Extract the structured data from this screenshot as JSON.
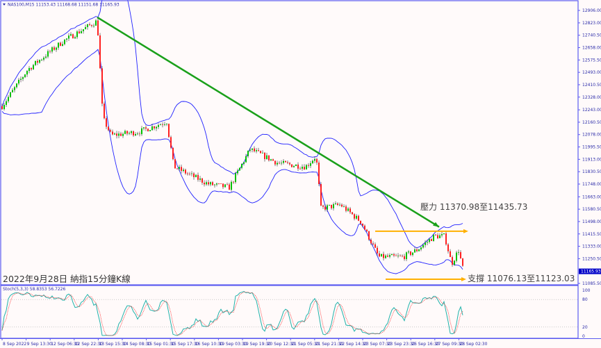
{
  "header": {
    "symbol_info": "NAS100,M15  11153.43 11168.68 11151.68 11165.93"
  },
  "title": "2022年9月28日 納指15分鐘K線",
  "stoch_header": "Stoch(5,3,3) 58.8353 56.7226",
  "colors": {
    "frame": "#5a5af0",
    "bull": "#00c000",
    "bear": "#ff2020",
    "wick": "#000000",
    "bands": "#2020ff",
    "trendline": "#1aa01a",
    "levels": "#ffb000",
    "stoch_main": "#20b2aa",
    "stoch_signal": "#ff3030",
    "price_tag_bg": "#0000c8"
  },
  "chart_data": {
    "type": "candlestick",
    "symbol": "NAS100",
    "timeframe": "M15",
    "indicators": [
      "Bollinger Bands",
      "Stochastic(5,3,3)"
    ],
    "y_ticks": [
      "12906.00",
      "12823.00",
      "12740.50",
      "12658.00",
      "12575.50",
      "12493.00",
      "12410.50",
      "12328.00",
      "12243.00",
      "12160.50",
      "12078.00",
      "11995.50",
      "11913.00",
      "11830.50",
      "11748.00",
      "11663.00",
      "11580.50",
      "11498.00",
      "11415.50",
      "11333.00",
      "11250.50",
      "11085.50"
    ],
    "ylim": [
      11085.5,
      12906
    ],
    "current_price": "11165.93",
    "x_ticks": [
      "8 Sep 2022",
      "9 Sep 13:30",
      "12 Sep 06:30",
      "12 Sep 22:30",
      "13 Sep 15:30",
      "14 Sep 08:30",
      "15 Sep 01:30",
      "15 Sep 17:30",
      "16 Sep 10:30",
      "19 Sep 03:30",
      "19 Sep 19:30",
      "20 Sep 12:30",
      "21 Sep 05:30",
      "21 Sep 21:30",
      "22 Sep 14:30",
      "23 Sep 07:30",
      "23 Sep 23:30",
      "26 Sep 16:30",
      "27 Sep 09:30",
      "28 Sep 02:30"
    ],
    "price_path": [
      {
        "t": "8 Sep 2022",
        "p": 12281
      },
      {
        "t": "9 Sep 09:00",
        "p": 12512
      },
      {
        "t": "12 Sep 00:00",
        "p": 12698
      },
      {
        "t": "13 Sep 14:00",
        "p": 12836
      },
      {
        "t": "13 Sep 16:00",
        "p": 12188
      },
      {
        "t": "13 Sep 22:00",
        "p": 12073
      },
      {
        "t": "14 Sep 18:00",
        "p": 12096
      },
      {
        "t": "15 Sep 09:00",
        "p": 12165
      },
      {
        "t": "15 Sep 13:00",
        "p": 11864
      },
      {
        "t": "16 Sep 08:00",
        "p": 11748
      },
      {
        "t": "16 Sep 16:00",
        "p": 11725
      },
      {
        "t": "19 Sep 06:00",
        "p": 11980
      },
      {
        "t": "20 Sep 00:00",
        "p": 11888
      },
      {
        "t": "20 Sep 20:00",
        "p": 11864
      },
      {
        "t": "21 Sep 16:00",
        "p": 11934
      },
      {
        "t": "21 Sep 21:00",
        "p": 11586
      },
      {
        "t": "22 Sep 08:00",
        "p": 11610
      },
      {
        "t": "22 Sep 22:00",
        "p": 11494
      },
      {
        "t": "23 Sep 12:00",
        "p": 11262
      },
      {
        "t": "26 Sep 04:00",
        "p": 11262
      },
      {
        "t": "26 Sep 14:00",
        "p": 11308
      },
      {
        "t": "27 Sep 03:00",
        "p": 11401
      },
      {
        "t": "27 Sep 10:00",
        "p": 11401
      },
      {
        "t": "27 Sep 14:00",
        "p": 11216
      },
      {
        "t": "27 Sep 20:00",
        "p": 11308
      },
      {
        "t": "28 Sep 02:30",
        "p": 11147
      }
    ],
    "stoch_levels": [
      "100",
      "80",
      "20",
      "0"
    ],
    "annotations": {
      "resistance": "壓力 11370.98至11435.73",
      "support": "支撐 11076.13至11123.03"
    },
    "lines": {
      "trendline": {
        "from": {
          "t": "13 Sep 14:00",
          "p": 12860
        },
        "to": {
          "t": "27 Sep 10:00",
          "p": 11462
        }
      },
      "resistance_level": 11435.73,
      "support_level": 11076.13
    }
  }
}
